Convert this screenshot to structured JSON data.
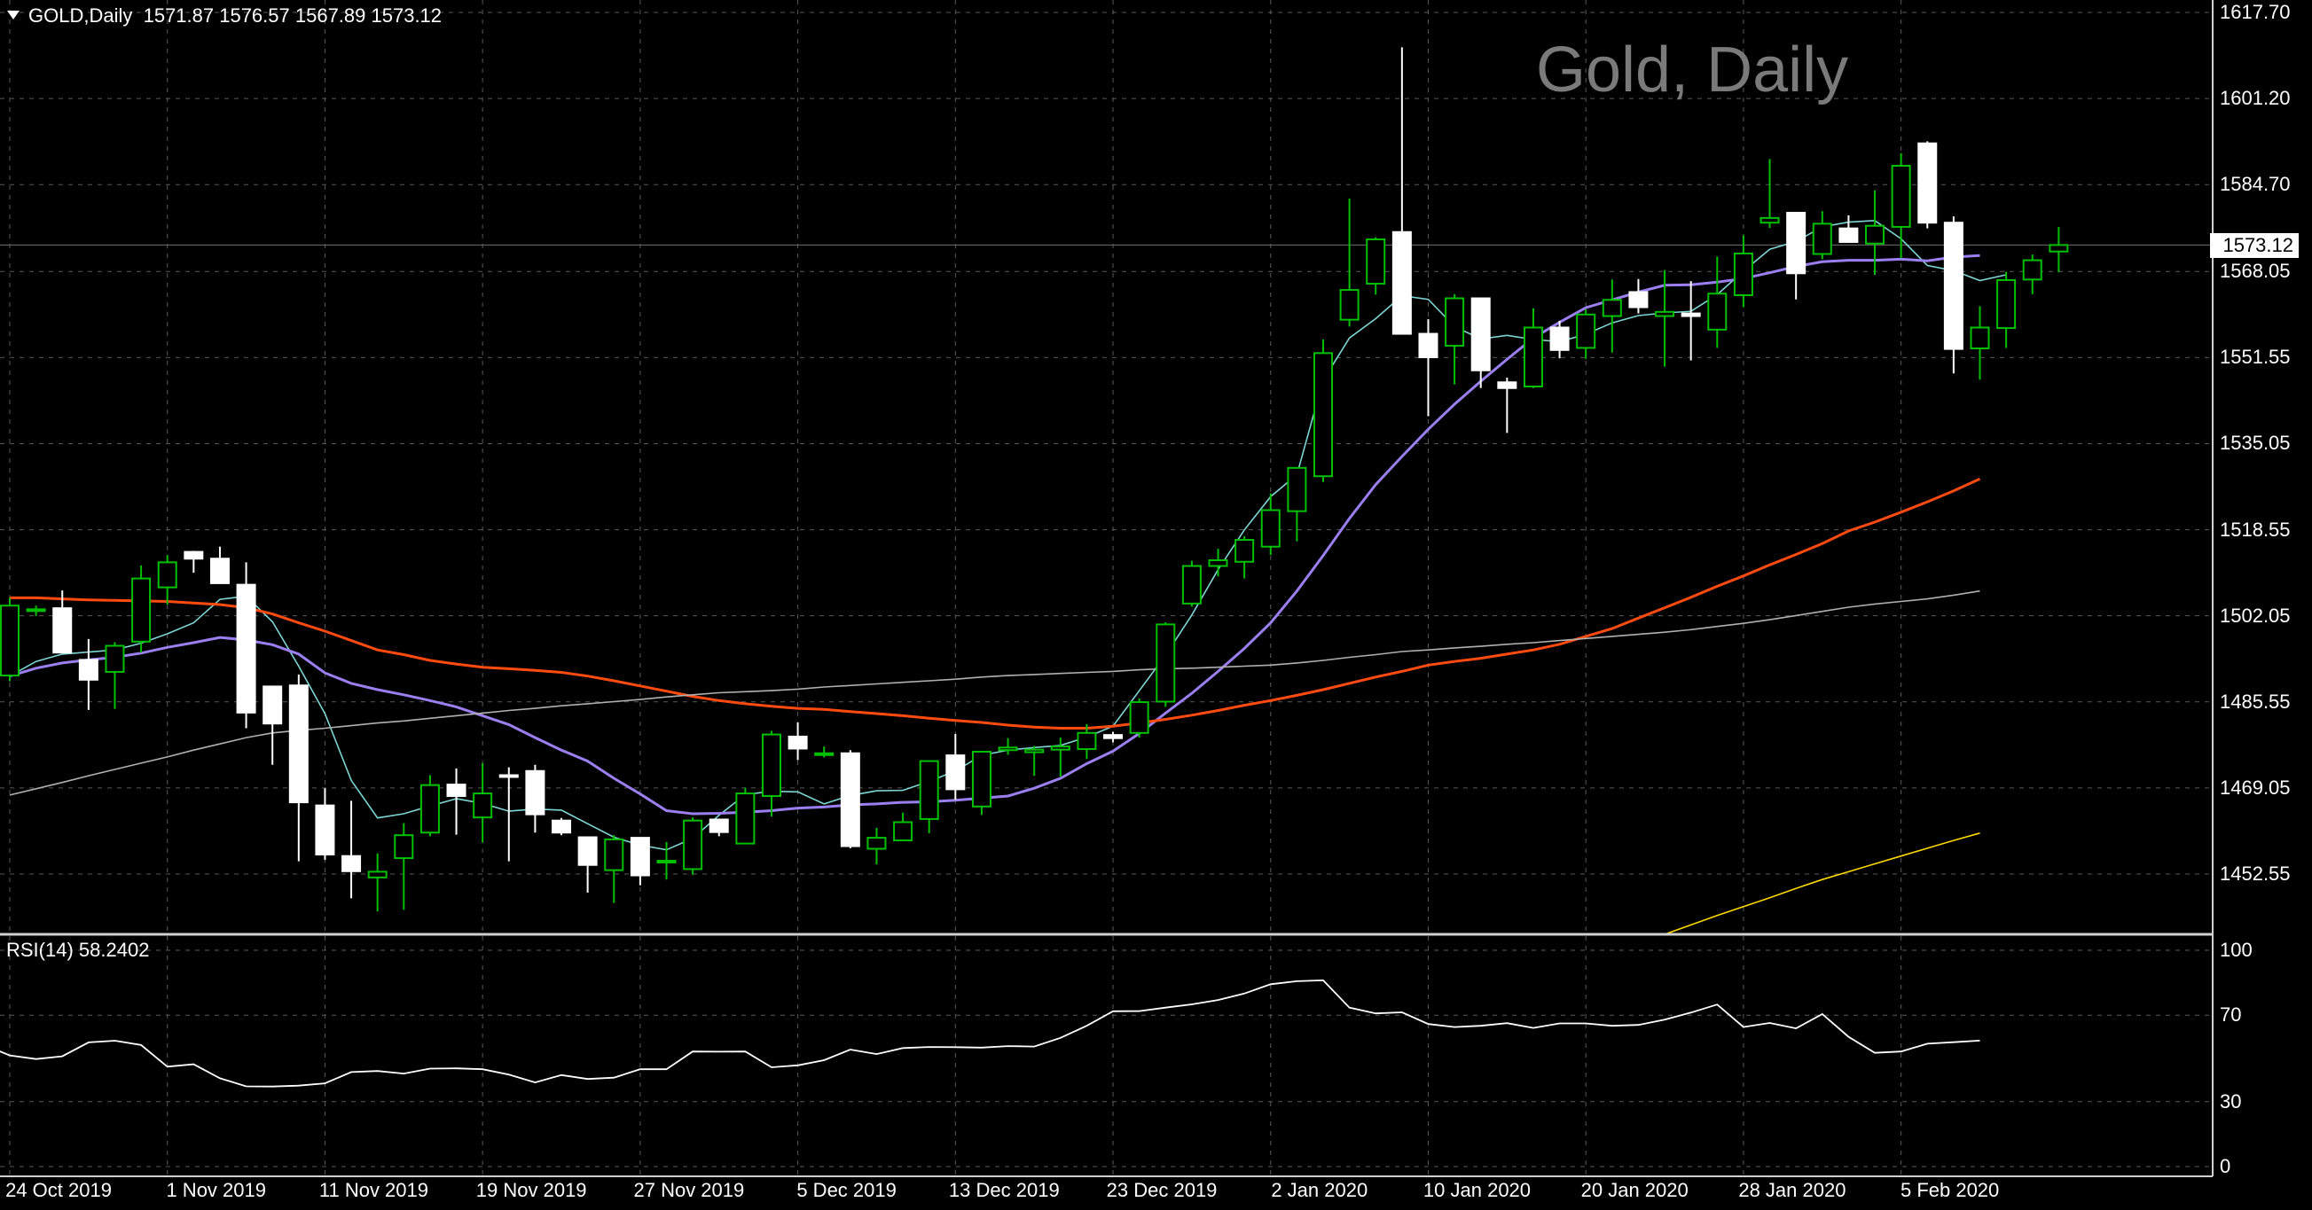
{
  "header": {
    "symbol": "GOLD,Daily",
    "ohlc": "1571.87 1576.57 1567.89 1573.12",
    "watermark": "Gold, Daily"
  },
  "rsi_panel": {
    "label": "RSI(14) 58.2402"
  },
  "colors": {
    "background": "#000000",
    "grid": "#5a5a5a",
    "bull_candle": "#00c000",
    "bear_candle": "#ffffff",
    "ma_fast": "#7fd4d4",
    "ma_medium": "#9b7ff0",
    "ma_slow": "#ff4a10",
    "ma_long": "#b0b0b0",
    "ma_extra": "#ffd700",
    "rsi_line": "#ffffff"
  },
  "chart_data": [
    {
      "type": "candlestick",
      "title": "Gold, Daily",
      "last_price": "1573.12",
      "y_ticks": [
        "1617.70",
        "1601.20",
        "1584.70",
        "1568.05",
        "1551.55",
        "1535.05",
        "1518.55",
        "1502.05",
        "1485.55",
        "1469.05",
        "1452.55"
      ],
      "ylim": [
        1441.0,
        1617.7
      ],
      "x_ticks": [
        "24 Oct 2019",
        "1 Nov 2019",
        "11 Nov 2019",
        "19 Nov 2019",
        "27 Nov 2019",
        "5 Dec 2019",
        "13 Dec 2019",
        "23 Dec 2019",
        "2 Jan 2020",
        "10 Jan 2020",
        "20 Jan 2020",
        "28 Jan 2020",
        "5 Feb 2020"
      ],
      "x_tick_index": [
        0,
        6,
        12,
        18,
        24,
        30,
        36,
        42,
        48,
        54,
        60,
        66,
        72
      ],
      "candles": [
        [
          1490.6,
          1505.5,
          1489.5,
          1504.0
        ],
        [
          1503.0,
          1504.0,
          1502.0,
          1503.3
        ],
        [
          1503.5,
          1506.9,
          1495.0,
          1495.0
        ],
        [
          1493.6,
          1497.6,
          1484.0,
          1489.8
        ],
        [
          1491.3,
          1497.0,
          1484.2,
          1496.3
        ],
        [
          1497.1,
          1511.7,
          1495.0,
          1509.2
        ],
        [
          1507.5,
          1513.7,
          1504.2,
          1512.3
        ],
        [
          1514.3,
          1514.5,
          1510.3,
          1513.0
        ],
        [
          1513.0,
          1515.3,
          1508.7,
          1508.3
        ],
        [
          1508.0,
          1512.3,
          1480.5,
          1483.5
        ],
        [
          1488.5,
          1488.5,
          1473.5,
          1481.4
        ],
        [
          1488.7,
          1490.8,
          1455.0,
          1466.3
        ],
        [
          1465.7,
          1469.0,
          1455.3,
          1456.3
        ],
        [
          1456.0,
          1466.6,
          1447.9,
          1453.1
        ],
        [
          1451.9,
          1456.5,
          1445.4,
          1453.0
        ],
        [
          1455.6,
          1462.3,
          1445.7,
          1460.0
        ],
        [
          1460.5,
          1471.5,
          1459.8,
          1469.6
        ],
        [
          1469.7,
          1472.8,
          1460.1,
          1467.5
        ],
        [
          1463.4,
          1473.8,
          1458.6,
          1468.0
        ],
        [
          1471.5,
          1473.0,
          1455.0,
          1471.2
        ],
        [
          1472.3,
          1473.5,
          1460.5,
          1464.0
        ],
        [
          1462.8,
          1463.3,
          1460.0,
          1460.5
        ],
        [
          1459.6,
          1459.6,
          1449.0,
          1454.3
        ],
        [
          1453.3,
          1460.0,
          1447.0,
          1459.2
        ],
        [
          1459.5,
          1459.5,
          1450.4,
          1452.3
        ],
        [
          1454.9,
          1458.7,
          1451.5,
          1455.1
        ],
        [
          1453.5,
          1463.4,
          1452.4,
          1462.8
        ],
        [
          1463.0,
          1463.0,
          1459.8,
          1460.6
        ],
        [
          1458.4,
          1469.1,
          1458.4,
          1468.0
        ],
        [
          1467.5,
          1480.0,
          1463.6,
          1479.3
        ],
        [
          1478.9,
          1481.6,
          1474.4,
          1476.6
        ],
        [
          1475.6,
          1477.0,
          1474.9,
          1475.7
        ],
        [
          1475.7,
          1476.3,
          1457.5,
          1457.9
        ],
        [
          1457.4,
          1461.4,
          1454.4,
          1459.5
        ],
        [
          1459.0,
          1464.3,
          1458.9,
          1462.5
        ],
        [
          1463.1,
          1473.6,
          1460.4,
          1474.2
        ],
        [
          1475.3,
          1479.4,
          1466.8,
          1468.8
        ],
        [
          1465.5,
          1476.0,
          1463.9,
          1476.0
        ],
        [
          1476.3,
          1478.6,
          1475.4,
          1476.8
        ],
        [
          1475.9,
          1477.1,
          1471.4,
          1476.4
        ],
        [
          1476.4,
          1478.7,
          1471.2,
          1477.0
        ],
        [
          1476.5,
          1481.3,
          1474.6,
          1479.6
        ],
        [
          1479.2,
          1479.8,
          1477.8,
          1478.6
        ],
        [
          1479.6,
          1486.2,
          1478.7,
          1485.5
        ],
        [
          1485.6,
          1500.8,
          1484.6,
          1500.4
        ],
        [
          1504.4,
          1512.6,
          1503.8,
          1511.6
        ],
        [
          1511.6,
          1514.9,
          1509.6,
          1512.7
        ],
        [
          1512.4,
          1517.3,
          1509.2,
          1516.6
        ],
        [
          1515.3,
          1525.5,
          1513.7,
          1522.3
        ],
        [
          1522.1,
          1530.5,
          1516.3,
          1530.4
        ],
        [
          1528.8,
          1555.0,
          1527.7,
          1552.4
        ],
        [
          1558.8,
          1582.0,
          1557.5,
          1564.5
        ],
        [
          1565.7,
          1574.6,
          1563.6,
          1574.2
        ],
        [
          1575.6,
          1611.0,
          1557.5,
          1556.1
        ],
        [
          1556.1,
          1558.9,
          1540.3,
          1551.6
        ],
        [
          1553.8,
          1563.7,
          1546.4,
          1562.9
        ],
        [
          1562.9,
          1562.8,
          1545.7,
          1549.1
        ],
        [
          1546.8,
          1547.7,
          1537.1,
          1545.7
        ],
        [
          1546.0,
          1561.0,
          1545.7,
          1557.3
        ],
        [
          1557.3,
          1558.6,
          1551.4,
          1553.0
        ],
        [
          1553.4,
          1560.8,
          1551.3,
          1559.8
        ],
        [
          1559.5,
          1566.5,
          1552.5,
          1562.6
        ],
        [
          1564.1,
          1566.6,
          1560.0,
          1561.2
        ],
        [
          1559.5,
          1568.3,
          1549.8,
          1560.3
        ],
        [
          1560.0,
          1566.2,
          1551.0,
          1559.5
        ],
        [
          1556.9,
          1570.9,
          1553.4,
          1563.8
        ],
        [
          1563.5,
          1575.0,
          1561.2,
          1571.5
        ],
        [
          1577.4,
          1589.6,
          1576.4,
          1578.3
        ],
        [
          1579.3,
          1579.3,
          1562.7,
          1567.7
        ],
        [
          1571.4,
          1579.6,
          1570.4,
          1577.2
        ],
        [
          1576.3,
          1578.8,
          1574.0,
          1573.7
        ],
        [
          1573.4,
          1583.6,
          1567.4,
          1576.8
        ],
        [
          1576.6,
          1590.7,
          1570.6,
          1588.3
        ],
        [
          1592.6,
          1593.0,
          1576.3,
          1577.4
        ],
        [
          1577.4,
          1578.6,
          1548.5,
          1553.2
        ],
        [
          1553.3,
          1561.4,
          1547.3,
          1557.3
        ],
        [
          1557.2,
          1568.0,
          1553.4,
          1566.4
        ],
        [
          1566.5,
          1571.3,
          1563.7,
          1570.2
        ],
        [
          1571.87,
          1576.57,
          1567.89,
          1573.12
        ]
      ],
      "series": [
        {
          "color": "ma_fast",
          "values": [
            1490.5,
            1493.3,
            1494.7,
            1495.1,
            1495.5,
            1496.8,
            1498.6,
            1500.7,
            1505.2,
            1505.8,
            1500.9,
            1492.4,
            1483.3,
            1470.5,
            1463.3,
            1464.1,
            1465.6,
            1467.0,
            1466.1,
            1464.6,
            1465.0,
            1464.8,
            1462.2,
            1459.6,
            1458.1,
            1457.2,
            1459.4,
            1463.8,
            1467.8,
            1468.4,
            1468.3,
            1466.0,
            1467.6,
            1468.5,
            1468.6,
            1470.3,
            1472.3,
            1475.3,
            1476.3,
            1476.8,
            1477.2,
            1478.8,
            1480.9,
            1487.7,
            1494.5,
            1502.2,
            1510.9,
            1518.5,
            1524.9,
            1529.1,
            1547.2,
            1555.3,
            1559.0,
            1563.4,
            1562.7,
            1557.5,
            1555.1,
            1555.8,
            1555.0,
            1554.6,
            1556.0,
            1558.2,
            1559.6,
            1560.1,
            1560.4,
            1563.6,
            1568.1,
            1572.3,
            1573.8,
            1576.6,
            1577.5,
            1577.8,
            1574.3,
            1569.2,
            1568.2,
            1566.3,
            1567.4
          ]
        },
        {
          "color": "ma_medium",
          "values": [
            1490.5,
            1492.0,
            1493.0,
            1493.6,
            1494.1,
            1494.9,
            1496.0,
            1496.9,
            1497.9,
            1497.4,
            1496.5,
            1494.7,
            1491.1,
            1489.1,
            1487.9,
            1486.9,
            1485.8,
            1484.6,
            1482.9,
            1481.2,
            1478.7,
            1476.3,
            1474.2,
            1470.9,
            1467.9,
            1464.7,
            1464.1,
            1464.2,
            1464.4,
            1464.7,
            1465.2,
            1465.4,
            1465.8,
            1466.0,
            1466.3,
            1466.4,
            1466.7,
            1467.1,
            1467.5,
            1469.0,
            1470.9,
            1473.7,
            1476.1,
            1479.5,
            1483.4,
            1487.2,
            1491.4,
            1495.8,
            1500.7,
            1506.8,
            1513.6,
            1520.7,
            1527.2,
            1532.6,
            1537.8,
            1542.6,
            1547.0,
            1551.2,
            1555.3,
            1558.3,
            1561.1,
            1562.6,
            1564.1,
            1565.4,
            1565.5,
            1566.0,
            1566.7,
            1567.8,
            1569.0,
            1569.9,
            1570.2,
            1570.2,
            1570.4,
            1570.1,
            1570.8,
            1571.1
          ]
        },
        {
          "color": "ma_slow",
          "values": [
            1505.5,
            1505.5,
            1505.3,
            1505.1,
            1505.0,
            1504.9,
            1504.8,
            1504.5,
            1504.2,
            1503.6,
            1502.4,
            1500.7,
            1499.1,
            1497.3,
            1495.5,
            1494.6,
            1493.5,
            1492.8,
            1492.2,
            1491.9,
            1491.6,
            1491.2,
            1490.5,
            1489.6,
            1488.6,
            1487.6,
            1486.6,
            1485.8,
            1485.2,
            1484.7,
            1484.3,
            1484.1,
            1483.7,
            1483.3,
            1482.9,
            1482.4,
            1482.0,
            1481.6,
            1481.1,
            1480.7,
            1480.5,
            1480.5,
            1480.9,
            1481.5,
            1482.2,
            1483.0,
            1483.9,
            1484.9,
            1485.8,
            1486.8,
            1487.9,
            1489.1,
            1490.3,
            1491.4,
            1492.6,
            1493.3,
            1493.9,
            1494.7,
            1495.5,
            1496.6,
            1498.1,
            1499.6,
            1501.6,
            1503.6,
            1505.6,
            1507.7,
            1509.7,
            1511.8,
            1513.8,
            1515.9,
            1518.3,
            1520.0,
            1521.9,
            1523.9,
            1526.0,
            1528.3
          ]
        },
        {
          "color": "ma_long",
          "values": [
            1467.7,
            1468.9,
            1470.1,
            1471.4,
            1472.6,
            1473.8,
            1475.0,
            1476.3,
            1477.5,
            1478.7,
            1479.6,
            1480.1,
            1480.5,
            1481.0,
            1481.5,
            1481.9,
            1482.4,
            1482.9,
            1483.4,
            1483.9,
            1484.3,
            1484.8,
            1485.2,
            1485.6,
            1486.0,
            1486.5,
            1486.9,
            1487.3,
            1487.5,
            1487.7,
            1488.0,
            1488.4,
            1488.7,
            1489.0,
            1489.3,
            1489.6,
            1489.9,
            1490.3,
            1490.6,
            1490.8,
            1491.0,
            1491.2,
            1491.4,
            1491.7,
            1491.9,
            1492.0,
            1492.2,
            1492.4,
            1492.6,
            1493.0,
            1493.5,
            1494.1,
            1494.6,
            1495.2,
            1495.5,
            1495.9,
            1496.2,
            1496.6,
            1496.9,
            1497.3,
            1497.7,
            1498.1,
            1498.5,
            1498.9,
            1499.4,
            1500.0,
            1500.6,
            1501.3,
            1502.1,
            1502.9,
            1503.7,
            1504.3,
            1504.8,
            1505.3,
            1506.0,
            1506.8
          ]
        },
        {
          "color": "ma_extra",
          "start_index": 63,
          "values": [
            1441.0,
            1442.8,
            1444.6,
            1446.3,
            1448.0,
            1449.8,
            1451.5,
            1453.0,
            1454.5,
            1456.0,
            1457.5,
            1459.0,
            1460.4
          ]
        }
      ]
    },
    {
      "type": "line",
      "title": "RSI(14) 58.2402",
      "y_ticks": [
        "100",
        "70",
        "30",
        "0"
      ],
      "ylim": [
        0,
        100
      ],
      "values": [
        56.4,
        56.3,
        51.4,
        49.7,
        51.0,
        57.4,
        58.2,
        56.2,
        46.2,
        47.3,
        40.8,
        37.1,
        37.0,
        37.4,
        38.5,
        43.7,
        44.2,
        43.0,
        45.3,
        45.4,
        45.0,
        42.5,
        38.9,
        42.3,
        40.5,
        41.1,
        45.0,
        45.0,
        53.2,
        53.1,
        53.2,
        45.9,
        46.8,
        49.2,
        54.1,
        52.0,
        54.8,
        55.3,
        55.2,
        55.0,
        55.7,
        55.5,
        59.5,
        65.1,
        71.8,
        71.9,
        73.5,
        75.0,
        77.0,
        80.0,
        84.3,
        85.7,
        86.1,
        73.5,
        70.8,
        71.3,
        65.9,
        64.5,
        65.1,
        66.3,
        64.1,
        66.2,
        66.2,
        65.1,
        65.5,
        67.9,
        71.2,
        74.9,
        64.5,
        66.4,
        63.9,
        70.5,
        60.0,
        52.6,
        53.2,
        56.8,
        57.5,
        58.2402
      ]
    }
  ]
}
